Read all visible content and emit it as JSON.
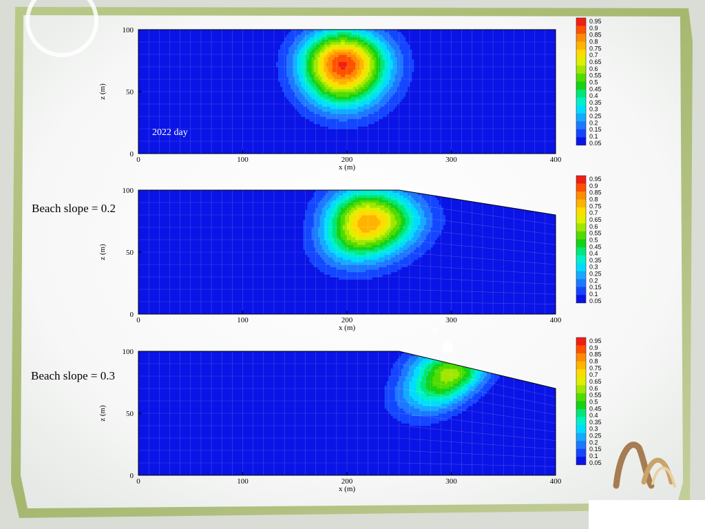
{
  "chart_data": {
    "type": "heatmap",
    "colors": [
      "#0a14e6",
      "#1446ff",
      "#1e78ff",
      "#14aaff",
      "#00dcff",
      "#00f0c8",
      "#00e678",
      "#14d214",
      "#50dc00",
      "#a0e600",
      "#dcf000",
      "#ffdc00",
      "#ffb400",
      "#ff8c00",
      "#ff5000",
      "#f01e14"
    ],
    "legend_labels": [
      "0.95",
      "0.9",
      "0.85",
      "0.8",
      "0.75",
      "0.7",
      "0.65",
      "0.6",
      "0.55",
      "0.5",
      "0.45",
      "0.4",
      "0.35",
      "0.3",
      "0.25",
      "0.2",
      "0.15",
      "0.1",
      "0.05"
    ],
    "panels": [
      {
        "title": "2022 day",
        "annotation": "",
        "xlabel": "x (m)",
        "ylabel": "z (m)",
        "xlim": [
          0,
          400
        ],
        "ylim": [
          0,
          100
        ],
        "xticks": [
          "0",
          "100",
          "200",
          "300",
          "400"
        ],
        "yticks": [
          "0",
          "50",
          "100"
        ],
        "top_boundary": [
          [
            0,
            100
          ],
          [
            400,
            100
          ]
        ],
        "plume": {
          "cx": 196,
          "cz": 72,
          "peak": 0.95,
          "rx_left": 58,
          "rx_right": 62,
          "rz_up": 40,
          "rz_down": 48,
          "x_bottom_offset": 0
        }
      },
      {
        "title": "",
        "annotation": "Beach slope = 0.2",
        "xlabel": "x (m)",
        "ylabel": "z (m)",
        "xlim": [
          0,
          400
        ],
        "ylim": [
          0,
          100
        ],
        "xticks": [
          "0",
          "100",
          "200",
          "300",
          "400"
        ],
        "yticks": [
          "0",
          "50",
          "100"
        ],
        "top_boundary": [
          [
            0,
            100
          ],
          [
            250,
            100
          ],
          [
            400,
            80
          ]
        ],
        "plume": {
          "cx": 220,
          "cz": 74,
          "peak": 0.8,
          "rx_left": 58,
          "rx_right": 70,
          "rz_up": 40,
          "rz_down": 44,
          "x_bottom_offset": -14
        }
      },
      {
        "title": "",
        "annotation": "Beach slope = 0.3",
        "xlabel": "x (m)",
        "ylabel": "z (m)",
        "xlim": [
          0,
          400
        ],
        "ylim": [
          0,
          100
        ],
        "xticks": [
          "0",
          "100",
          "200",
          "300",
          "400"
        ],
        "yticks": [
          "0",
          "50",
          "100"
        ],
        "top_boundary": [
          [
            0,
            100
          ],
          [
            250,
            100
          ],
          [
            400,
            70
          ]
        ],
        "plume": {
          "cx": 300,
          "cz": 82,
          "peak": 0.6,
          "rx_left": 58,
          "rx_right": 48,
          "rz_up": 28,
          "rz_down": 42,
          "x_bottom_offset": -30
        }
      }
    ]
  }
}
